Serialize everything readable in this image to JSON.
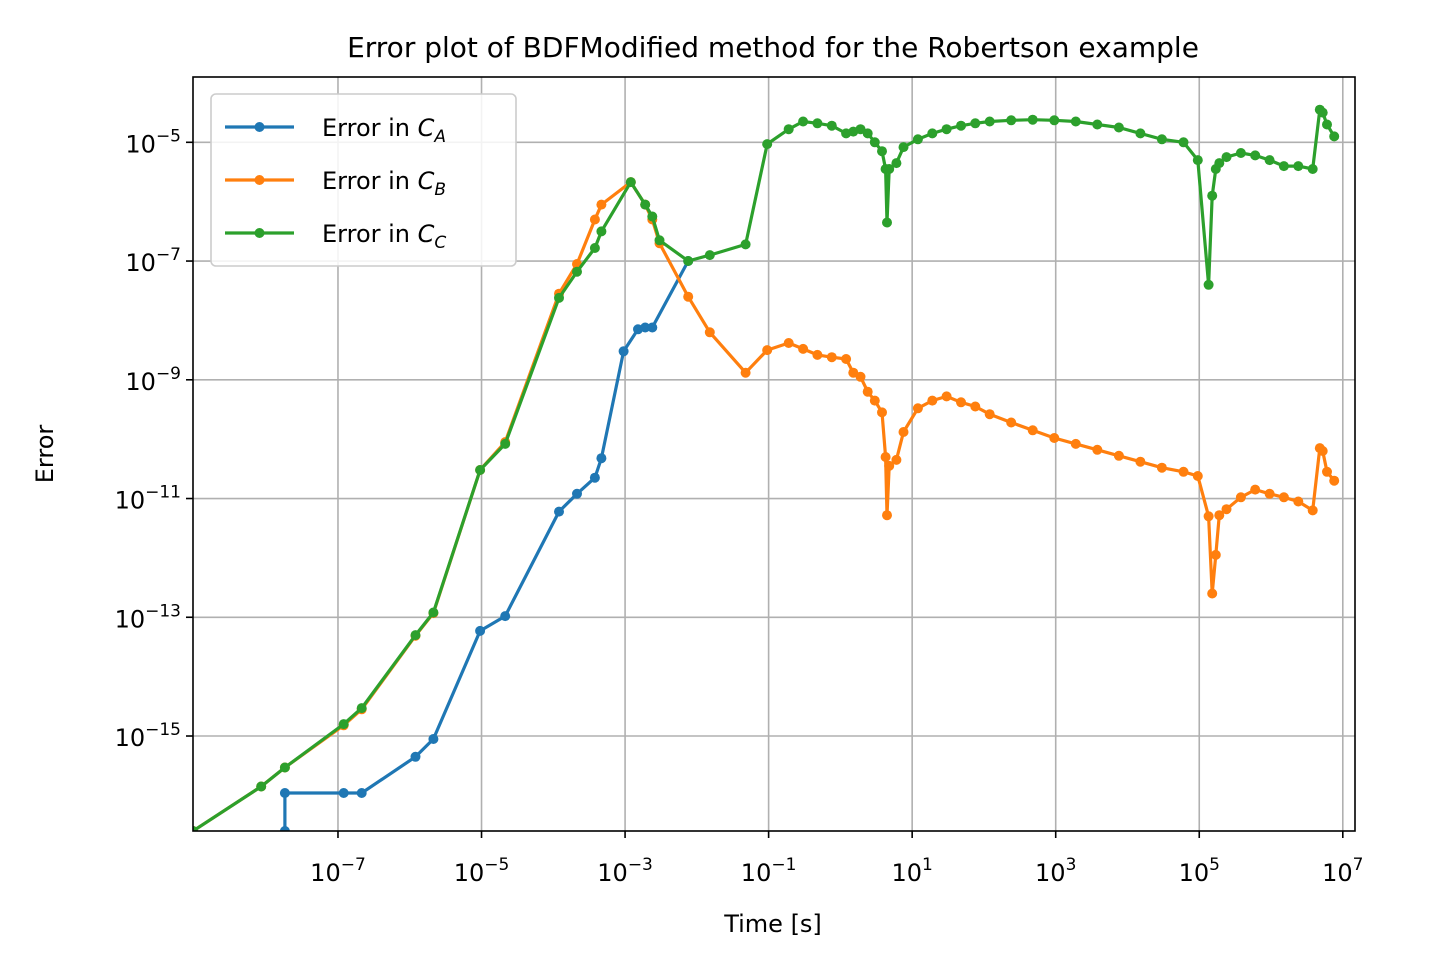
{
  "chart_data": {
    "type": "line",
    "title": "Error plot of BDFModified method for the Robertson example",
    "xlabel": "Time [s]",
    "ylabel": "Error",
    "xscale": "log",
    "yscale": "log",
    "xlim_log10": [
      -9.02,
      7.17
    ],
    "ylim_log10": [
      -16.6,
      -3.9
    ],
    "x_ticks": [
      {
        "exp": -7,
        "base": "10",
        "sup": "−7"
      },
      {
        "exp": -5,
        "base": "10",
        "sup": "−5"
      },
      {
        "exp": -3,
        "base": "10",
        "sup": "−3"
      },
      {
        "exp": -1,
        "base": "10",
        "sup": "−1"
      },
      {
        "exp": 1,
        "base": "10",
        "sup": "1"
      },
      {
        "exp": 3,
        "base": "10",
        "sup": "3"
      },
      {
        "exp": 5,
        "base": "10",
        "sup": "5"
      },
      {
        "exp": 7,
        "base": "10",
        "sup": "7"
      }
    ],
    "y_ticks": [
      {
        "exp": -15,
        "base": "10",
        "sup": "−15"
      },
      {
        "exp": -13,
        "base": "10",
        "sup": "−13"
      },
      {
        "exp": -11,
        "base": "10",
        "sup": "−11"
      },
      {
        "exp": -9,
        "base": "10",
        "sup": "−9"
      },
      {
        "exp": -7,
        "base": "10",
        "sup": "−7"
      },
      {
        "exp": -5,
        "base": "10",
        "sup": "−5"
      }
    ],
    "grid": true,
    "legend_position": "upper-left",
    "series": [
      {
        "name": "Error in C_A",
        "legend_text": "Error in ",
        "legend_var": "C",
        "legend_sub": "A",
        "color": "#1f77b4",
        "x_log10": [
          -7.74,
          -7.74,
          -6.92,
          -6.67,
          -5.92,
          -5.67,
          -5.02,
          -4.67,
          -3.92,
          -3.67,
          -3.42,
          -3.33,
          -3.02,
          -2.82,
          -2.72,
          -2.62,
          -2.12
        ],
        "y_log10": [
          -16.6,
          -15.96,
          -15.96,
          -15.96,
          -15.35,
          -15.05,
          -13.23,
          -12.98,
          -11.22,
          -10.92,
          -10.65,
          -10.32,
          -8.52,
          -8.15,
          -8.12,
          -8.12,
          -7.0
        ]
      },
      {
        "name": "Error in C_B",
        "legend_text": "Error in ",
        "legend_var": "C",
        "legend_sub": "B",
        "color": "#ff7f0e",
        "x_log10": [
          -9.02,
          -8.07,
          -7.74,
          -6.92,
          -6.67,
          -5.92,
          -5.67,
          -5.02,
          -4.67,
          -3.92,
          -3.67,
          -3.42,
          -3.33,
          -2.92,
          -2.72,
          -2.62,
          -2.52,
          -2.12,
          -1.82,
          -1.32,
          -1.02,
          -0.72,
          -0.52,
          -0.32,
          -0.12,
          0.08,
          0.18,
          0.28,
          0.38,
          0.48,
          0.58,
          0.63,
          0.65,
          0.68,
          0.78,
          0.88,
          1.08,
          1.28,
          1.48,
          1.68,
          1.88,
          2.08,
          2.38,
          2.68,
          2.98,
          3.28,
          3.58,
          3.88,
          4.18,
          4.48,
          4.78,
          4.98,
          5.13,
          5.18,
          5.23,
          5.28,
          5.38,
          5.58,
          5.78,
          5.98,
          6.18,
          6.38,
          6.58,
          6.68,
          6.72,
          6.78,
          6.88
        ],
        "y_log10": [
          -16.6,
          -15.85,
          -15.53,
          -14.82,
          -14.55,
          -13.31,
          -12.93,
          -10.52,
          -10.05,
          -7.55,
          -7.05,
          -6.3,
          -6.05,
          -5.67,
          -6.05,
          -6.3,
          -6.7,
          -7.6,
          -8.2,
          -8.88,
          -8.5,
          -8.38,
          -8.48,
          -8.58,
          -8.62,
          -8.65,
          -8.88,
          -8.95,
          -9.2,
          -9.35,
          -9.55,
          -10.3,
          -11.28,
          -10.45,
          -10.35,
          -9.88,
          -9.48,
          -9.35,
          -9.28,
          -9.38,
          -9.45,
          -9.58,
          -9.72,
          -9.85,
          -9.98,
          -10.08,
          -10.18,
          -10.28,
          -10.38,
          -10.48,
          -10.55,
          -10.62,
          -11.3,
          -12.6,
          -11.95,
          -11.28,
          -11.18,
          -10.98,
          -10.85,
          -10.92,
          -10.98,
          -11.05,
          -11.2,
          -10.15,
          -10.2,
          -10.55,
          -10.7
        ]
      },
      {
        "name": "Error in C_C",
        "legend_text": "Error in ",
        "legend_var": "C",
        "legend_sub": "C",
        "color": "#2ca02c",
        "x_log10": [
          -9.02,
          -8.07,
          -7.74,
          -6.92,
          -6.67,
          -5.92,
          -5.67,
          -5.02,
          -4.67,
          -3.92,
          -3.67,
          -3.42,
          -3.33,
          -2.92,
          -2.72,
          -2.62,
          -2.52,
          -2.12,
          -1.82,
          -1.32,
          -1.02,
          -0.72,
          -0.52,
          -0.32,
          -0.12,
          0.08,
          0.18,
          0.28,
          0.38,
          0.48,
          0.58,
          0.63,
          0.65,
          0.68,
          0.78,
          0.88,
          1.08,
          1.28,
          1.48,
          1.68,
          1.88,
          2.08,
          2.38,
          2.68,
          2.98,
          3.28,
          3.58,
          3.88,
          4.18,
          4.48,
          4.78,
          4.98,
          5.13,
          5.18,
          5.23,
          5.28,
          5.38,
          5.58,
          5.78,
          5.98,
          6.18,
          6.38,
          6.58,
          6.68,
          6.72,
          6.78,
          6.88
        ],
        "y_log10": [
          -16.6,
          -15.85,
          -15.53,
          -14.8,
          -14.53,
          -13.3,
          -12.92,
          -10.52,
          -10.08,
          -7.62,
          -7.18,
          -6.78,
          -6.5,
          -5.67,
          -6.05,
          -6.25,
          -6.65,
          -7.0,
          -6.9,
          -6.72,
          -5.03,
          -4.78,
          -4.65,
          -4.68,
          -4.72,
          -4.85,
          -4.82,
          -4.78,
          -4.85,
          -5.0,
          -5.15,
          -5.45,
          -6.35,
          -5.45,
          -5.35,
          -5.08,
          -4.95,
          -4.85,
          -4.78,
          -4.72,
          -4.68,
          -4.65,
          -4.63,
          -4.62,
          -4.63,
          -4.65,
          -4.7,
          -4.75,
          -4.85,
          -4.95,
          -5.0,
          -5.3,
          -7.4,
          -5.9,
          -5.45,
          -5.35,
          -5.25,
          -5.18,
          -5.22,
          -5.3,
          -5.4,
          -5.4,
          -5.45,
          -4.45,
          -4.5,
          -4.7,
          -4.9
        ]
      }
    ]
  }
}
